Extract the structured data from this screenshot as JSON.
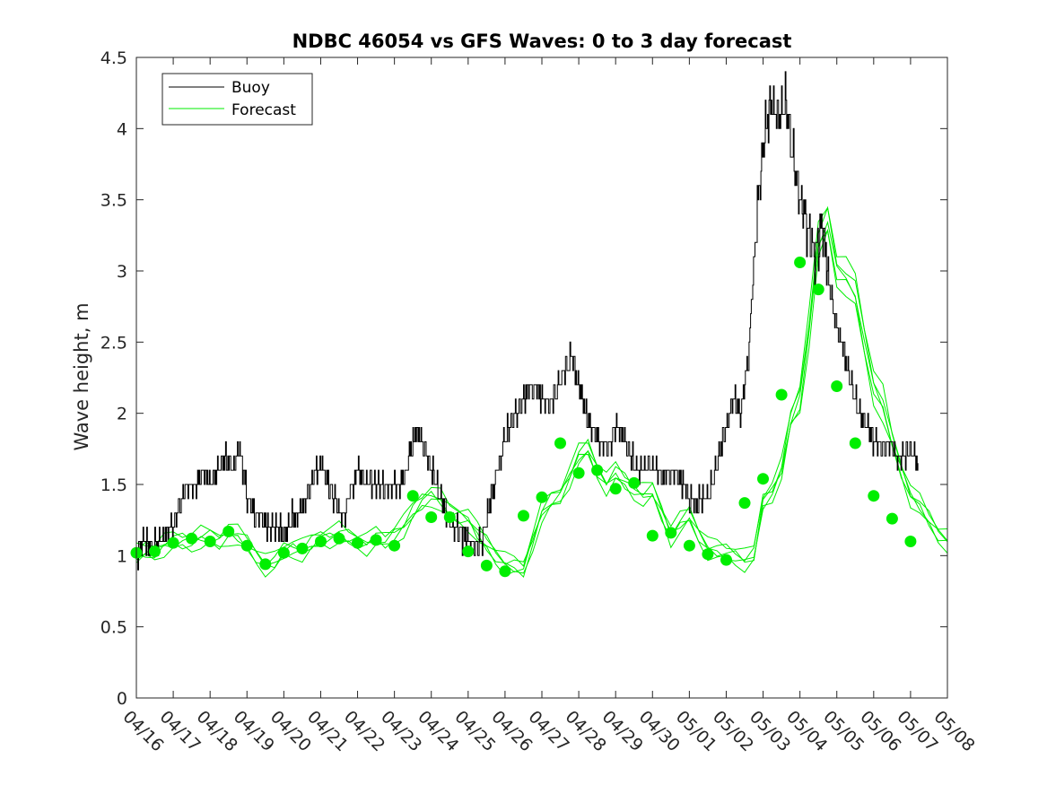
{
  "chart_data": {
    "type": "line",
    "title": "NDBC 46054 vs GFS Waves: 0 to 3 day forecast",
    "xlabel": "",
    "ylabel": "Wave height, m",
    "xlim": [
      "04/16",
      "05/08"
    ],
    "ylim": [
      0,
      4.5
    ],
    "y_ticks": [
      "0",
      "0.5",
      "1",
      "1.5",
      "2",
      "2.5",
      "3",
      "3.5",
      "4",
      "4.5"
    ],
    "x_ticks": [
      "04/16",
      "04/17",
      "04/18",
      "04/19",
      "04/20",
      "04/21",
      "04/22",
      "04/23",
      "04/24",
      "04/25",
      "04/26",
      "04/27",
      "04/28",
      "04/29",
      "04/30",
      "05/01",
      "05/02",
      "05/03",
      "05/04",
      "05/05",
      "05/06",
      "05/07",
      "05/08"
    ],
    "grid": false,
    "legend_position": "top-left",
    "colors": {
      "buoy": "#000000",
      "forecast": "#00ee00"
    },
    "series": [
      {
        "name": "Buoy",
        "note_x_units": "days after 04/16",
        "x": [
          0,
          0.2,
          0.4,
          0.6,
          0.8,
          1.0,
          1.2,
          1.4,
          1.6,
          1.8,
          2.0,
          2.2,
          2.4,
          2.6,
          2.8,
          3.0,
          3.2,
          3.4,
          3.6,
          3.8,
          4.0,
          4.2,
          4.4,
          4.6,
          4.8,
          5.0,
          5.2,
          5.4,
          5.6,
          5.8,
          6.0,
          6.2,
          6.4,
          6.6,
          6.8,
          7.0,
          7.2,
          7.4,
          7.6,
          7.8,
          8.0,
          8.2,
          8.4,
          8.6,
          8.8,
          9.0,
          9.2,
          9.4,
          9.6,
          9.8,
          10.0,
          10.2,
          10.4,
          10.6,
          10.8,
          11.0,
          11.2,
          11.4,
          11.6,
          11.8,
          12.0,
          12.2,
          12.4,
          12.6,
          12.8,
          13.0,
          13.2,
          13.4,
          13.6,
          13.8,
          14.0,
          14.2,
          14.4,
          14.6,
          14.8,
          15.0,
          15.2,
          15.4,
          15.6,
          15.8,
          16.0,
          16.2,
          16.4,
          16.6,
          16.8,
          17.0,
          17.2,
          17.4,
          17.6,
          17.8,
          18.0,
          18.2,
          18.4,
          18.6,
          18.8,
          19.0,
          19.2,
          19.4,
          19.6,
          19.8,
          20.0,
          20.2,
          20.4,
          20.6,
          20.8,
          21.0,
          21.2
        ],
        "values": [
          1.0,
          1.1,
          1.05,
          1.1,
          1.15,
          1.2,
          1.4,
          1.5,
          1.45,
          1.6,
          1.5,
          1.6,
          1.7,
          1.6,
          1.75,
          1.4,
          1.3,
          1.25,
          1.2,
          1.2,
          1.15,
          1.25,
          1.3,
          1.4,
          1.55,
          1.65,
          1.5,
          1.4,
          1.25,
          1.45,
          1.6,
          1.55,
          1.5,
          1.5,
          1.45,
          1.5,
          1.5,
          1.7,
          1.9,
          1.75,
          1.6,
          1.45,
          1.3,
          1.2,
          1.15,
          1.1,
          1.05,
          1.15,
          1.4,
          1.6,
          1.85,
          1.95,
          2.05,
          2.15,
          2.2,
          2.1,
          2.05,
          2.15,
          2.3,
          2.4,
          2.2,
          2.0,
          1.85,
          1.8,
          1.75,
          1.9,
          1.85,
          1.7,
          1.6,
          1.6,
          1.65,
          1.55,
          1.55,
          1.6,
          1.5,
          1.4,
          1.35,
          1.4,
          1.5,
          1.7,
          1.9,
          2.1,
          2.0,
          2.4,
          3.3,
          3.9,
          4.2,
          4.05,
          4.2,
          3.8,
          3.5,
          3.3,
          3.1,
          3.3,
          2.9,
          2.6,
          2.4,
          2.2,
          2.0,
          1.9,
          1.8,
          1.75,
          1.8,
          1.7,
          1.7,
          1.75,
          1.65
        ]
      },
      {
        "name": "Forecast",
        "note_x_units": "days after 04/16",
        "x": [
          0,
          0.25,
          0.5,
          0.75,
          1.0,
          1.25,
          1.5,
          1.75,
          2.0,
          2.25,
          2.5,
          2.75,
          3.0,
          3.25,
          3.5,
          3.75,
          4.0,
          4.25,
          4.5,
          4.75,
          5.0,
          5.25,
          5.5,
          5.75,
          6.0,
          6.25,
          6.5,
          6.75,
          7.0,
          7.25,
          7.5,
          7.75,
          8.0,
          8.25,
          8.5,
          8.75,
          9.0,
          9.25,
          9.5,
          9.75,
          10.0,
          10.25,
          10.5,
          10.75,
          11.0,
          11.25,
          11.5,
          11.75,
          12.0,
          12.25,
          12.5,
          12.75,
          13.0,
          13.25,
          13.5,
          13.75,
          14.0,
          14.25,
          14.5,
          14.75,
          15.0,
          15.25,
          15.5,
          15.75,
          16.0,
          16.25,
          16.5,
          16.75,
          17.0,
          17.25,
          17.5,
          17.75,
          18.0,
          18.25,
          18.5,
          18.75,
          19.0,
          19.25,
          19.5,
          19.75,
          20.0,
          20.25,
          20.5,
          20.75,
          21.0,
          21.25,
          21.5,
          21.75,
          22.0
        ],
        "values": [
          1.0,
          1.03,
          1.03,
          1.07,
          1.09,
          1.1,
          1.1,
          1.12,
          1.12,
          1.1,
          1.15,
          1.13,
          1.08,
          1.0,
          0.93,
          0.95,
          1.03,
          1.05,
          1.03,
          1.08,
          1.12,
          1.13,
          1.15,
          1.12,
          1.1,
          1.08,
          1.12,
          1.1,
          1.15,
          1.2,
          1.3,
          1.38,
          1.42,
          1.38,
          1.3,
          1.28,
          1.25,
          1.15,
          1.08,
          1.0,
          0.94,
          0.92,
          0.9,
          1.1,
          1.3,
          1.38,
          1.42,
          1.55,
          1.7,
          1.75,
          1.6,
          1.5,
          1.58,
          1.52,
          1.46,
          1.42,
          1.45,
          1.3,
          1.14,
          1.22,
          1.28,
          1.15,
          1.05,
          1.03,
          1.02,
          1.0,
          0.96,
          1.0,
          1.38,
          1.45,
          1.6,
          1.95,
          2.1,
          2.6,
          3.2,
          3.35,
          3.0,
          2.95,
          2.85,
          2.5,
          2.18,
          2.05,
          1.8,
          1.6,
          1.42,
          1.35,
          1.25,
          1.15,
          1.1
        ]
      }
    ],
    "markers": {
      "note_x_units": "days after 04/16",
      "x": [
        0,
        0.5,
        1.0,
        1.5,
        2.0,
        2.5,
        3.0,
        3.5,
        4.0,
        4.5,
        5.0,
        5.5,
        6.0,
        6.5,
        7.0,
        7.5,
        8.0,
        8.5,
        9.0,
        9.5,
        10.0,
        10.5,
        11.0,
        11.5,
        12.0,
        12.5,
        13.0,
        13.5,
        14.0,
        14.5,
        15.0,
        15.5,
        16.0,
        16.5,
        17.0,
        17.5,
        18.0,
        18.5,
        19.0,
        19.5,
        20.0,
        20.5,
        21.0
      ],
      "values": [
        1.02,
        1.03,
        1.09,
        1.12,
        1.1,
        1.17,
        1.07,
        0.94,
        1.02,
        1.05,
        1.1,
        1.12,
        1.09,
        1.11,
        1.07,
        1.42,
        1.27,
        1.27,
        1.03,
        0.93,
        0.89,
        1.28,
        1.41,
        1.79,
        1.58,
        1.6,
        1.47,
        1.51,
        1.14,
        1.16,
        1.07,
        1.01,
        0.97,
        1.37,
        1.54,
        2.13,
        3.06,
        2.87,
        2.19,
        1.79,
        1.42,
        1.26,
        1.1
      ]
    }
  }
}
